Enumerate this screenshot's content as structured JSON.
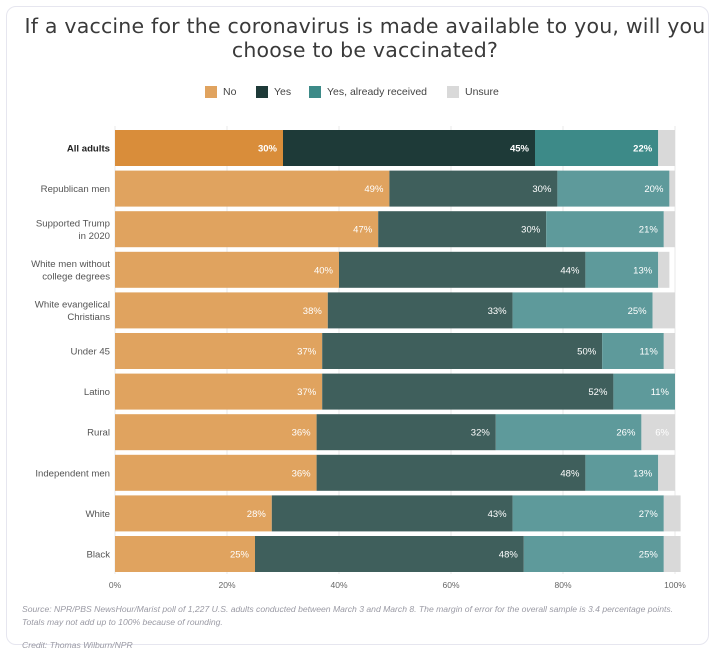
{
  "chart_data": {
    "type": "bar",
    "orientation": "horizontal",
    "stacked": true,
    "title": "If a vaccine for the coronavirus is made available to you, will you choose to be vaccinated?",
    "categories": [
      "All adults",
      "Republican men",
      "Supported Trump in 2020",
      "White men without college degrees",
      "White evangelical Christians",
      "Under 45",
      "Latino",
      "Rural",
      "Independent men",
      "White",
      "Black"
    ],
    "category_lines": [
      [
        "All adults"
      ],
      [
        "Republican men"
      ],
      [
        "Supported Trump",
        "in 2020"
      ],
      [
        "White men without",
        "college degrees"
      ],
      [
        "White evangelical",
        "Christians"
      ],
      [
        "Under 45"
      ],
      [
        "Latino"
      ],
      [
        "Rural"
      ],
      [
        "Independent men"
      ],
      [
        "White"
      ],
      [
        "Black"
      ]
    ],
    "highlighted_category": "All adults",
    "series": [
      {
        "name": "No",
        "color": "#e0a35f",
        "highlight_color": "#d98d3a",
        "values": [
          30,
          49,
          47,
          40,
          38,
          37,
          37,
          36,
          36,
          28,
          25
        ]
      },
      {
        "name": "Yes",
        "color": "#3f5f5c",
        "highlight_color": "#1e3a38",
        "values": [
          45,
          30,
          30,
          44,
          33,
          50,
          52,
          32,
          48,
          43,
          48
        ]
      },
      {
        "name": "Yes, already received",
        "color": "#5e9a9b",
        "highlight_color": "#3d8a88",
        "values": [
          22,
          20,
          21,
          13,
          25,
          11,
          11,
          26,
          13,
          27,
          25
        ]
      },
      {
        "name": "Unsure",
        "color": "#d9d9d9",
        "highlight_color": "#d9d9d9",
        "values": [
          3,
          1,
          2,
          2,
          4,
          2,
          0,
          6,
          3,
          3,
          3
        ]
      }
    ],
    "data_labels": [
      [
        "30%",
        "45%",
        "22%",
        ""
      ],
      [
        "49%",
        "30%",
        "20%",
        ""
      ],
      [
        "47%",
        "30%",
        "21%",
        ""
      ],
      [
        "40%",
        "44%",
        "13%",
        ""
      ],
      [
        "38%",
        "33%",
        "25%",
        ""
      ],
      [
        "37%",
        "50%",
        "11%",
        ""
      ],
      [
        "37%",
        "52%",
        "11%",
        ""
      ],
      [
        "36%",
        "32%",
        "26%",
        "6%"
      ],
      [
        "36%",
        "48%",
        "13%",
        ""
      ],
      [
        "28%",
        "43%",
        "27%",
        ""
      ],
      [
        "25%",
        "48%",
        "25%",
        ""
      ]
    ],
    "xlim": [
      0,
      100
    ],
    "x_ticks": [
      0,
      20,
      40,
      60,
      80,
      100
    ],
    "x_tick_labels": [
      "0%",
      "20%",
      "40%",
      "60%",
      "80%",
      "100%"
    ],
    "legend_position": "top"
  },
  "legend": [
    {
      "label": "No",
      "color": "#e0a35f"
    },
    {
      "label": "Yes",
      "color": "#1e3a38"
    },
    {
      "label": "Yes, already received",
      "color": "#3d8a88"
    },
    {
      "label": "Unsure",
      "color": "#d9d9d9"
    }
  ],
  "footer": {
    "source": "Source: NPR/PBS NewsHour/Marist poll of 1,227 U.S. adults conducted between March 3 and March 8. The margin of error for the overall sample is 3.4 percentage points. Totals may not add up to 100% because of rounding.",
    "credit": "Credit: Thomas Wilburn/NPR"
  }
}
